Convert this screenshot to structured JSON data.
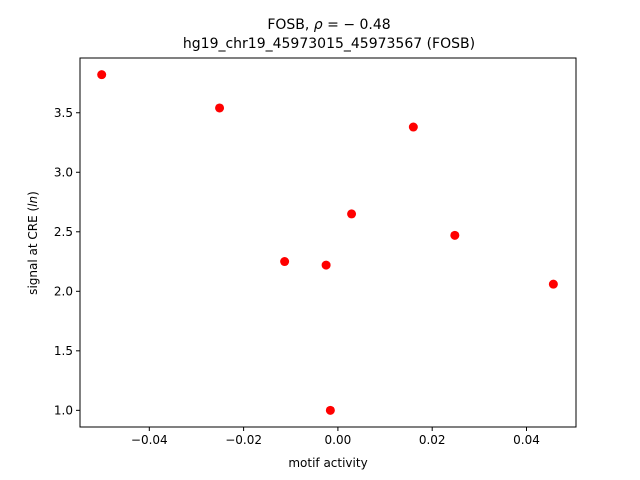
{
  "chart_data": {
    "type": "scatter",
    "title_line1_prefix": "FOSB, ",
    "title_line1_rho": "ρ",
    "title_line1_value": " = − 0.48",
    "title_line2": "hg19_chr19_45973015_45973567 (FOSB)",
    "xlabel": "motif activity",
    "ylabel_prefix": "signal at CRE (",
    "ylabel_italic": "ln",
    "ylabel_suffix": ")",
    "xlim": [
      -0.0547,
      0.0505
    ],
    "ylim": [
      0.86,
      3.96
    ],
    "xticks": [
      {
        "value": -0.04,
        "label": "−0.04"
      },
      {
        "value": -0.02,
        "label": "−0.02"
      },
      {
        "value": 0.0,
        "label": "0.00"
      },
      {
        "value": 0.02,
        "label": "0.02"
      },
      {
        "value": 0.04,
        "label": "0.04"
      }
    ],
    "yticks": [
      {
        "value": 1.0,
        "label": "1.0"
      },
      {
        "value": 1.5,
        "label": "1.5"
      },
      {
        "value": 2.0,
        "label": "2.0"
      },
      {
        "value": 2.5,
        "label": "2.5"
      },
      {
        "value": 3.0,
        "label": "3.0"
      },
      {
        "value": 3.5,
        "label": "3.5"
      }
    ],
    "marker_color": "#ff0000",
    "grid": false,
    "points": [
      {
        "x": -0.0501,
        "y": 3.82
      },
      {
        "x": -0.0251,
        "y": 3.54
      },
      {
        "x": -0.0113,
        "y": 2.25
      },
      {
        "x": -0.0025,
        "y": 2.22
      },
      {
        "x": -0.0016,
        "y": 1.0
      },
      {
        "x": 0.0029,
        "y": 2.65
      },
      {
        "x": 0.016,
        "y": 3.38
      },
      {
        "x": 0.0248,
        "y": 2.47
      },
      {
        "x": 0.0457,
        "y": 2.06
      }
    ]
  }
}
